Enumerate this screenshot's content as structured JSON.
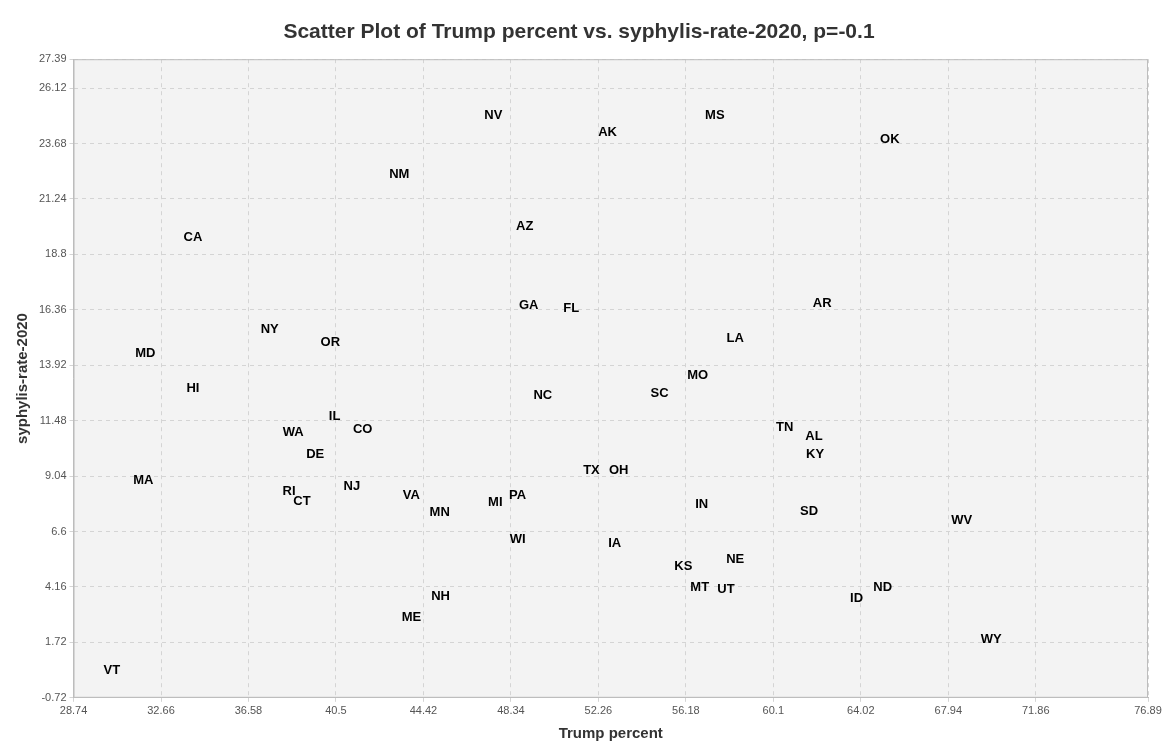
{
  "chart_data": {
    "type": "scatter",
    "title": "Scatter Plot of Trump percent vs. syphylis-rate-2020, p=-0.1",
    "x_label": "Trump percent",
    "y_label": "syphylis-rate-2020",
    "marker": "text",
    "color": "#000000",
    "grid": true,
    "xlim": [
      28.74,
      76.89
    ],
    "xticks": [
      28.74,
      32.66,
      36.58,
      40.5,
      44.42,
      48.34,
      52.26,
      56.18,
      60.1,
      64.02,
      67.94,
      71.86,
      76.89
    ],
    "ylim": [
      -0.72,
      27.39
    ],
    "yticks": [
      -0.72,
      1.72,
      4.16,
      6.6,
      9.04,
      11.48,
      13.92,
      16.36,
      18.8,
      21.24,
      23.68,
      26.12,
      27.39
    ],
    "labels": [
      "VT",
      "MA",
      "MD",
      "HI",
      "CA",
      "NY",
      "WA",
      "DE",
      "RI",
      "CT",
      "OR",
      "IL",
      "CO",
      "NJ",
      "VA",
      "MN",
      "NH",
      "ME",
      "NM",
      "NV",
      "AZ",
      "GA",
      "FL",
      "NC",
      "MI",
      "PA",
      "WI",
      "AK",
      "TX",
      "OH",
      "IA",
      "SC",
      "MO",
      "MS",
      "LA",
      "IN",
      "KS",
      "MT",
      "UT",
      "NE",
      "TN",
      "AL",
      "KY",
      "AR",
      "SD",
      "OK",
      "ID",
      "ND",
      "WV",
      "WY"
    ],
    "x": [
      30.46,
      31.87,
      31.96,
      34.09,
      34.09,
      37.53,
      38.58,
      39.57,
      38.4,
      38.98,
      40.25,
      40.44,
      41.7,
      41.21,
      43.88,
      45.15,
      45.19,
      43.88,
      43.34,
      47.55,
      48.96,
      49.14,
      51.04,
      49.77,
      47.64,
      48.64,
      48.64,
      52.67,
      51.95,
      53.17,
      52.99,
      55.0,
      56.71,
      57.48,
      58.39,
      56.89,
      56.07,
      56.8,
      57.98,
      58.39,
      60.61,
      61.92,
      61.97,
      62.29,
      61.7,
      65.32,
      63.83,
      65.0,
      68.54,
      69.86
    ],
    "values": [
      0.48,
      8.87,
      14.43,
      12.91,
      19.54,
      15.51,
      10.98,
      9.99,
      8.38,
      7.93,
      14.92,
      11.65,
      11.11,
      8.6,
      8.2,
      7.43,
      3.76,
      2.82,
      22.32,
      24.92,
      20.04,
      16.54,
      16.4,
      12.59,
      7.88,
      8.2,
      6.27,
      24.16,
      9.27,
      9.27,
      6.09,
      12.68,
      13.49,
      24.92,
      15.1,
      7.79,
      5.06,
      4.16,
      4.07,
      5.37,
      11.2,
      10.8,
      9.99,
      16.63,
      7.48,
      23.85,
      3.67,
      4.16,
      7.08,
      1.87
    ]
  }
}
